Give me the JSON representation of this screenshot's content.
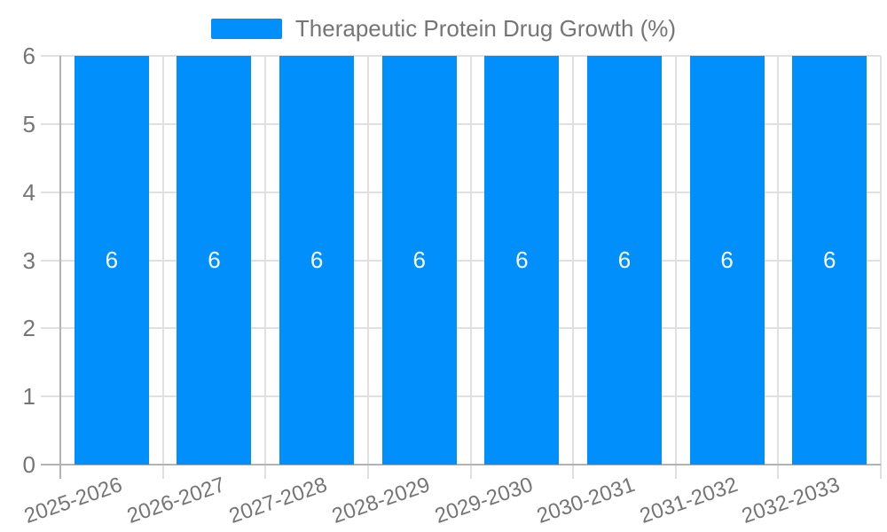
{
  "legend": {
    "label": "Therapeutic Protein Drug Growth (%)"
  },
  "colors": {
    "bar": "#008FFB",
    "bar_label": "#FFFFFF",
    "text": "#757575",
    "grid": "#E0E0E0",
    "axis": "#B3B3B3"
  },
  "chart_data": {
    "type": "bar",
    "title": "Therapeutic Protein Drug Growth (%)",
    "categories": [
      "2025-2026",
      "2026-2027",
      "2027-2028",
      "2028-2029",
      "2029-2030",
      "2030-2031",
      "2031-2032",
      "2032-2033"
    ],
    "values": [
      6,
      6,
      6,
      6,
      6,
      6,
      6,
      6
    ],
    "bar_value_labels": [
      "6",
      "6",
      "6",
      "6",
      "6",
      "6",
      "6",
      "6"
    ],
    "xlabel": "",
    "ylabel": "",
    "ylim": [
      0,
      6
    ],
    "yticks": [
      0,
      1,
      2,
      3,
      4,
      5,
      6
    ],
    "grid": true,
    "legend_position": "top",
    "x_tick_rotation_deg": -19
  }
}
